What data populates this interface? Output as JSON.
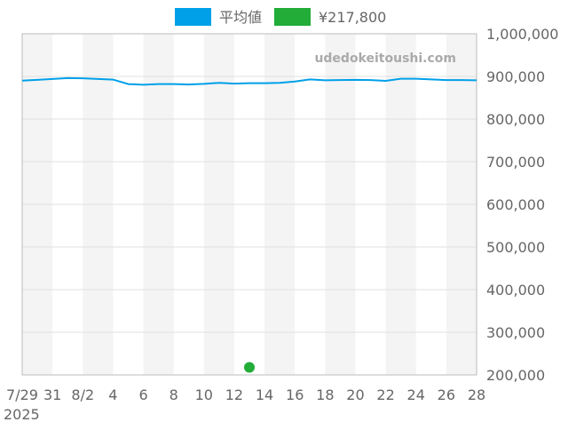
{
  "watermark": "udedokeitoushi.com",
  "chart_data": {
    "type": "line",
    "x_start": "2025-07-29",
    "x_end": "2025-08-28",
    "x_tick_labels": [
      "7/29",
      "31",
      "8/2",
      "4",
      "6",
      "8",
      "10",
      "12",
      "14",
      "16",
      "18",
      "20",
      "22",
      "24",
      "26",
      "28"
    ],
    "x_year_label": "2025",
    "ylim": [
      200000,
      1000000
    ],
    "y_tick_labels": [
      "1,000,000",
      "900,000",
      "800,000",
      "700,000",
      "600,000",
      "500,000",
      "400,000",
      "300,000",
      "200,000"
    ],
    "y_ticks": [
      1000000,
      900000,
      800000,
      700000,
      600000,
      500000,
      400000,
      300000,
      200000
    ],
    "grid": true,
    "legend_position": "top",
    "series": [
      {
        "name": "平均値",
        "kind": "line",
        "color": "#00a0e9",
        "dates": [
          "2025-07-29",
          "2025-07-30",
          "2025-07-31",
          "2025-08-01",
          "2025-08-02",
          "2025-08-03",
          "2025-08-04",
          "2025-08-05",
          "2025-08-06",
          "2025-08-07",
          "2025-08-08",
          "2025-08-09",
          "2025-08-10",
          "2025-08-11",
          "2025-08-12",
          "2025-08-13",
          "2025-08-14",
          "2025-08-15",
          "2025-08-16",
          "2025-08-17",
          "2025-08-18",
          "2025-08-19",
          "2025-08-20",
          "2025-08-21",
          "2025-08-22",
          "2025-08-23",
          "2025-08-24",
          "2025-08-25",
          "2025-08-26",
          "2025-08-27",
          "2025-08-28"
        ],
        "values": [
          890000,
          892000,
          894000,
          896000,
          895500,
          894000,
          892500,
          882000,
          880500,
          882000,
          882000,
          881000,
          882500,
          885000,
          883000,
          884000,
          884000,
          885000,
          888000,
          893000,
          891000,
          891500,
          892000,
          891500,
          889500,
          894500,
          894500,
          893000,
          891500,
          891500,
          891000
        ]
      },
      {
        "name": "¥217,800",
        "kind": "point",
        "color": "#22ac38",
        "dates": [
          "2025-08-13"
        ],
        "values": [
          217800
        ]
      }
    ]
  }
}
